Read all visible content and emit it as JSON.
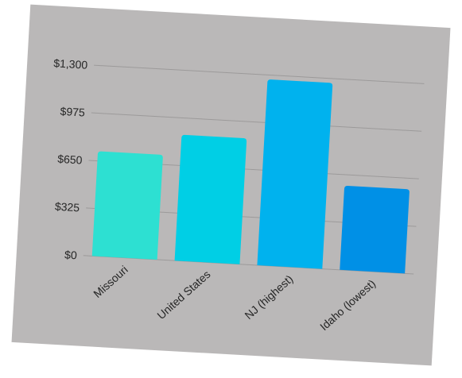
{
  "chart_data": {
    "type": "bar",
    "title": "",
    "xlabel": "",
    "ylabel": "",
    "categories": [
      "Missouri",
      "United States",
      "NJ (highest)",
      "Idaho (lowest)"
    ],
    "values": [
      716,
      860,
      1270,
      575
    ],
    "y_ticks": [
      0,
      325,
      650,
      975,
      1300
    ],
    "y_tick_labels": [
      "$0",
      "$325",
      "$650",
      "$975",
      "$1,300"
    ],
    "ylim": [
      0,
      1300
    ],
    "grid": true,
    "legend": "none",
    "bar_colors": [
      "#2de0d2",
      "#00cfe5",
      "#00b2ee",
      "#0090e6"
    ],
    "gridline_color": "#9c9a9a",
    "background_color": "#bab8b8"
  }
}
